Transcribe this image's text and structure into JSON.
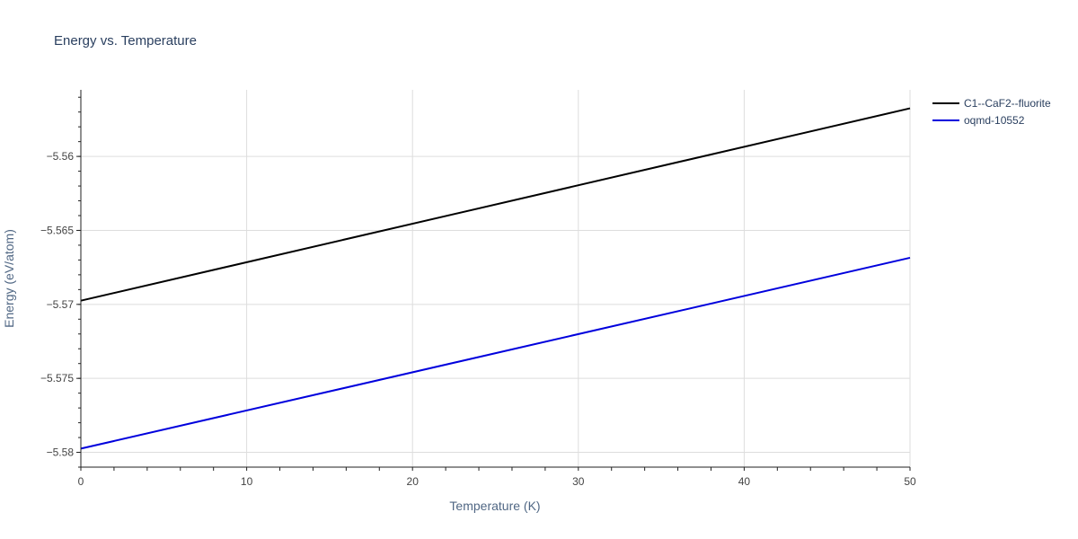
{
  "chart_data": {
    "type": "line",
    "title": "Energy vs. Temperature",
    "xlabel": "Temperature (K)",
    "ylabel": "Energy (eV/atom)",
    "xlim": [
      0,
      50
    ],
    "ylim": [
      -5.581,
      -5.5555
    ],
    "xticks": [
      0,
      10,
      20,
      30,
      40,
      50
    ],
    "xtick_labels": [
      "0",
      "10",
      "20",
      "30",
      "40",
      "50"
    ],
    "yticks": [
      -5.58,
      -5.575,
      -5.57,
      -5.565,
      -5.56
    ],
    "ytick_labels": [
      "−5.58",
      "−5.575",
      "−5.57",
      "−5.565",
      "−5.56"
    ],
    "grid": true,
    "legend_position": "top-right",
    "series": [
      {
        "name": "C1--CaF2--fluorite",
        "color": "#000000",
        "x": [
          0,
          50
        ],
        "y": [
          -5.56975,
          -5.55675
        ]
      },
      {
        "name": "oqmd-10552",
        "color": "#0000dd",
        "x": [
          0,
          50
        ],
        "y": [
          -5.57975,
          -5.56685
        ]
      }
    ]
  }
}
